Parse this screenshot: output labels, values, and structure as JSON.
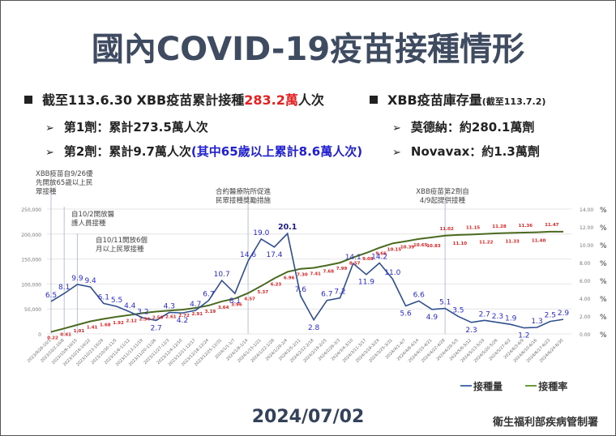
{
  "page": {
    "title": "國內COVID-19疫苗接種情形",
    "date": "2024/07/02",
    "org": "衛生福利部疾病管制署"
  },
  "summary_left": {
    "headline_prefix": "截至113.6.30 XBB疫苗累計接種",
    "headline_value": "283.2萬",
    "headline_suffix": "人次",
    "dose1": "第1劑：累計273.5萬人次",
    "dose2_prefix": "第2劑：累計9.7萬人次",
    "dose2_highlight": "(其中65歲以上累計8.6萬人次)"
  },
  "summary_right": {
    "headline": "XBB疫苗庫存量",
    "headline_note": "(截至113.7.2)",
    "moderna": "莫德納：約280.1萬劑",
    "novavax": "Novavax：約1.3萬劑"
  },
  "annotations": {
    "a1": [
      "XBB疫苗自9/26優",
      "先開放65歲以上民",
      "眾接種"
    ],
    "a2": [
      "自10/2開放醫",
      "護人員接種"
    ],
    "a3": [
      "自10/11開放6個",
      "月以上民眾接種"
    ],
    "a4": [
      "合約醫療院所促進",
      "民眾接種獎勵措施"
    ],
    "a5": [
      "XBB疫苗第2劑自",
      "4/9起提供接種"
    ]
  },
  "legend": {
    "volume": "接種量",
    "rate": "接種率"
  },
  "colors": {
    "volume_line": "#2f4f8f",
    "rate_line": "#4a6b1f",
    "volume_label": "#2a2ad0",
    "rate_label": "#e02020",
    "title": "#3e4b60"
  },
  "chart_data": {
    "type": "line",
    "title": "",
    "xlabel": "",
    "ylabel": "接種量",
    "y2label": "%",
    "ylim": [
      0,
      250000
    ],
    "y2lim": [
      0,
      14
    ],
    "yticks": [
      "0",
      "50,000",
      "100,000",
      "150,000",
      "200,000",
      "250,000"
    ],
    "y2ticks": [
      "0.00",
      "2.00",
      "4.00",
      "6.00",
      "8.00",
      "10.00",
      "12.00",
      "14.00"
    ],
    "categories": [
      "2023/9/26-10/1",
      "2023/10/2-10/8",
      "2023/10/9-10/15",
      "2023/10/16-10/22",
      "2023/10/23-10/29",
      "2023/10/30-11/5",
      "2023/11/6-11/12",
      "2023/11/13-11/19",
      "2023/11/20-11/26",
      "2023/11/27-12/3",
      "2023/12/4-12/10",
      "2023/12/11-12/17",
      "2023/12/18-12/24",
      "2023/12/25-12/31",
      "2024/1/1-1/7",
      "2024/1/8-1/14",
      "2024/1/15-1/21",
      "2024/1/22-1/28",
      "2024/1/29-2/4",
      "2024/2/5-2/11",
      "2024/2/12-2/18",
      "2024/2/19-2/25",
      "2024/2/26-3/3",
      "2024/3/4-3/10",
      "2024/3/11-3/17",
      "2024/3/18-3/24",
      "2024/3/25-3/31",
      "2024/4/1-4/7",
      "2024/4/8-4/14",
      "2024/4/15-4/21",
      "2024/4/22-4/28",
      "2024/4/29-5/5",
      "2024/5/6-5/12",
      "2024/5/13-5/19",
      "2024/5/20-5/26",
      "2024/5/27-6/2",
      "2024/6/3-6/9",
      "2024/6/10-6/16",
      "2024/6/17-6/23",
      "2024/6/24-6/30"
    ],
    "series": [
      {
        "name": "接種量",
        "axis": "left",
        "unit_label": "萬",
        "labels": [
          6.5,
          8.1,
          9.9,
          9.4,
          6.1,
          5.5,
          4.4,
          3.2,
          2.7,
          4.3,
          4.2,
          4.7,
          6.7,
          10.7,
          8.1,
          14.6,
          19.0,
          17.4,
          20.1,
          7.6,
          2.8,
          6.7,
          7.2,
          14.1,
          11.9,
          14.2,
          11.0,
          5.6,
          6.6,
          4.9,
          5.1,
          3.5,
          2.3,
          2.7,
          2.3,
          1.9,
          1.2,
          1.3,
          2.5,
          2.9
        ],
        "values": [
          65000,
          81000,
          99000,
          94000,
          61000,
          55000,
          44000,
          32000,
          27000,
          43000,
          42000,
          47000,
          67000,
          107000,
          81000,
          146000,
          190000,
          174000,
          201000,
          76000,
          28000,
          67000,
          72000,
          141000,
          119000,
          142000,
          110000,
          56000,
          66000,
          49000,
          51000,
          35000,
          23000,
          27000,
          23000,
          19000,
          12000,
          13000,
          25000,
          29000
        ]
      },
      {
        "name": "接種率",
        "axis": "right",
        "values": [
          0.22,
          0.61,
          1.01,
          1.41,
          1.68,
          1.92,
          2.12,
          2.34,
          2.5,
          2.61,
          2.72,
          2.91,
          3.19,
          3.64,
          3.96,
          4.57,
          5.37,
          6.23,
          6.96,
          7.3,
          7.41,
          7.68,
          7.99,
          8.57,
          9.08,
          9.66,
          10.15,
          10.39,
          10.65,
          10.83,
          11.02,
          11.1,
          11.15,
          11.22,
          11.28,
          11.33,
          11.36,
          11.4,
          11.47,
          11.47
        ]
      }
    ],
    "vertical_markers": [
      "2023/9/26-10/1",
      "2023/10/2-10/8",
      "2023/10/9-10/15",
      "2024/1/8-1/14",
      "2024/4/22-4/28"
    ],
    "grid": true,
    "legend_position": "bottom-right"
  }
}
